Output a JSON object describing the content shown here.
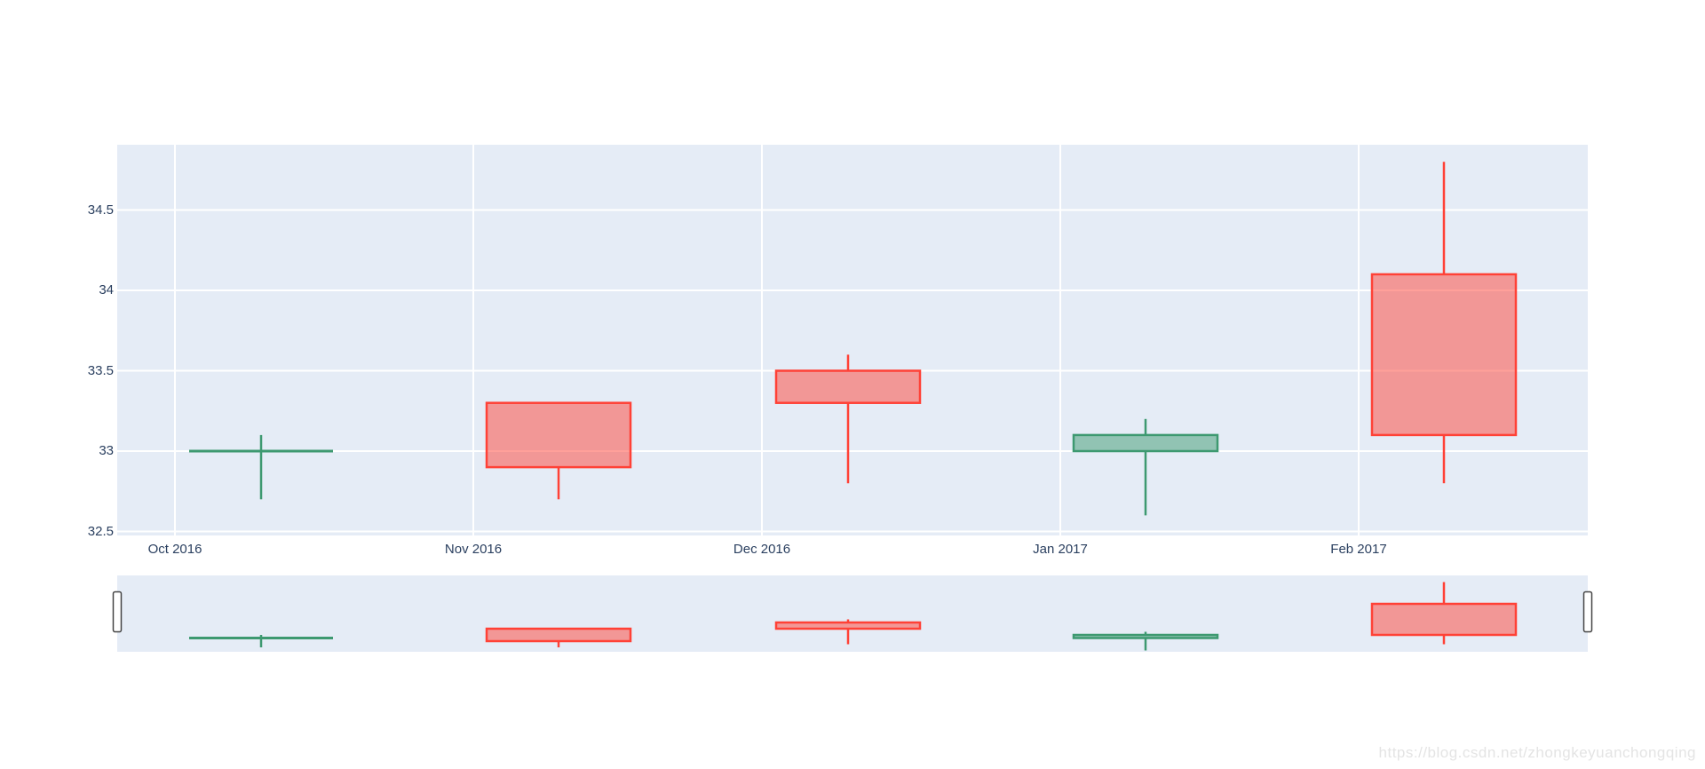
{
  "figure": {
    "watermark": "https://blog.csdn.net/zhongkeyuanchongqing"
  },
  "colors": {
    "increasing": "#3D9970",
    "decreasing": "#FF4136",
    "plot_background": "#E5ECF6",
    "paper_background": "#FFFFFF",
    "gridline": "#FFFFFF",
    "tick_label": "#2A3F5F",
    "watermark": "#E4E4E4",
    "slider_handle_fill": "#FFFFFF",
    "slider_handle_border": "#444444"
  },
  "chart_data": {
    "type": "candlestick",
    "title": "",
    "xlabel": "",
    "ylabel": "",
    "x_tick_labels": [
      "Oct 2016",
      "Nov 2016",
      "Dec 2016",
      "Jan 2017",
      "Feb 2017"
    ],
    "y_tick_labels": [
      "32.5",
      "33",
      "33.5",
      "34",
      "34.5"
    ],
    "y_tick_values": [
      32.5,
      33,
      33.5,
      34,
      34.5
    ],
    "ylim": [
      32.48,
      34.91
    ],
    "grid": true,
    "legend": false,
    "rangeslider": true,
    "candles": [
      {
        "x": "Oct 2016",
        "open": 33.0,
        "high": 33.1,
        "low": 32.7,
        "close": 33.0,
        "direction": "increasing"
      },
      {
        "x": "Nov 2016",
        "open": 33.3,
        "high": 33.3,
        "low": 32.7,
        "close": 32.9,
        "direction": "decreasing"
      },
      {
        "x": "Dec 2016",
        "open": 33.5,
        "high": 33.6,
        "low": 32.8,
        "close": 33.3,
        "direction": "decreasing"
      },
      {
        "x": "Jan 2017",
        "open": 33.0,
        "high": 33.2,
        "low": 32.6,
        "close": 33.1,
        "direction": "increasing"
      },
      {
        "x": "Feb 2017",
        "open": 34.1,
        "high": 34.8,
        "low": 32.8,
        "close": 33.1,
        "direction": "decreasing"
      }
    ]
  }
}
